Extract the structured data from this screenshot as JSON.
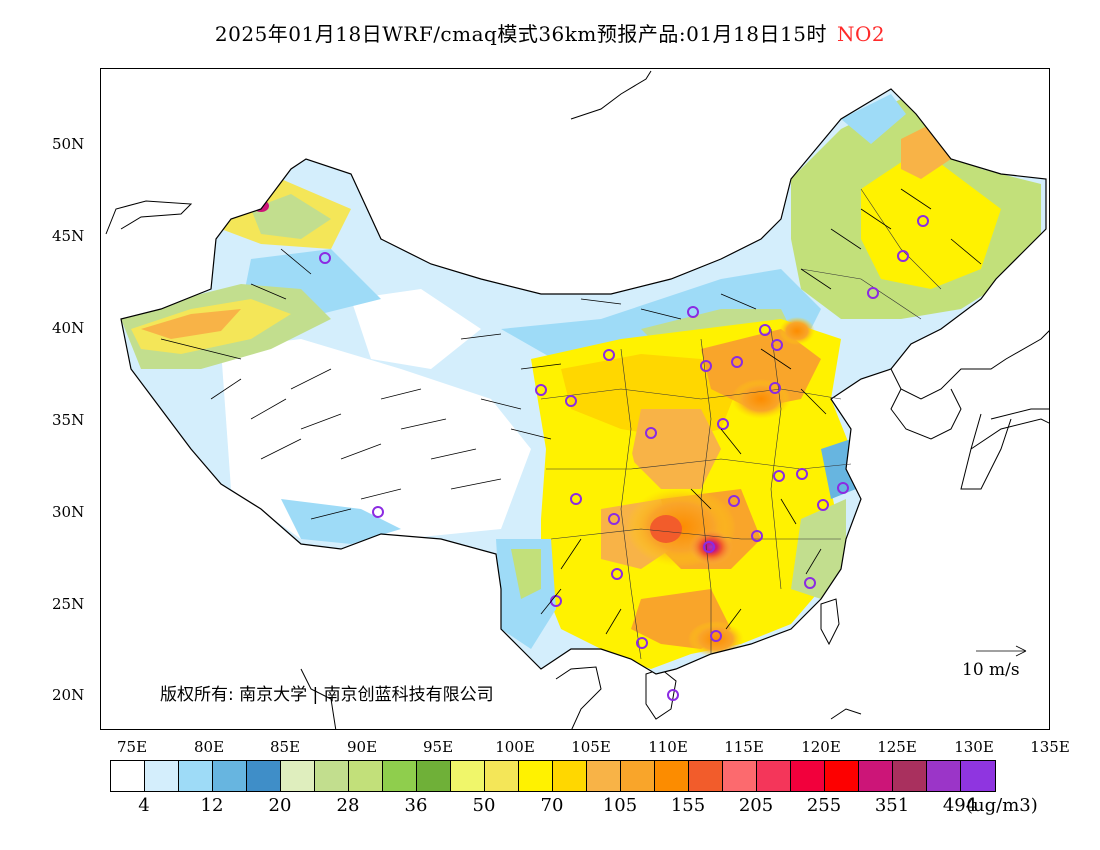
{
  "header": {
    "title": "2025年01月18日WRF/cmaq模式36km预报产品:01月18日15时",
    "pollutant": "NO2"
  },
  "map": {
    "lat_labels": [
      "50N",
      "45N",
      "40N",
      "35N",
      "30N",
      "25N",
      "20N"
    ],
    "lon_labels": [
      "75E",
      "80E",
      "85E",
      "90E",
      "95E",
      "100E",
      "105E",
      "110E",
      "115E",
      "120E",
      "125E",
      "130E",
      "135E"
    ],
    "credit": "版权所有: 南京大学 | 南京创蓝科技有限公司",
    "wind_reference": "10 m/s"
  },
  "legend": {
    "colors": [
      "#ffffff",
      "#d4eefc",
      "#9edbf7",
      "#67b5e0",
      "#3f8ec8",
      "#dfeebe",
      "#c2de8e",
      "#c2e07a",
      "#8fce4d",
      "#6fb038",
      "#f0f66a",
      "#f4e658",
      "#fff200",
      "#ffd700",
      "#f8b347",
      "#f9a52a",
      "#fc8c00",
      "#f25c2b",
      "#fc6a6e",
      "#f4365a",
      "#f2003c",
      "#fd0000",
      "#cc1578",
      "#a9305e",
      "#9b35c8",
      "#8f35e0"
    ],
    "ticks": [
      "4",
      "12",
      "20",
      "28",
      "36",
      "50",
      "70",
      "105",
      "155",
      "205",
      "255",
      "351",
      "494"
    ],
    "unit": "(ug/m3)"
  }
}
